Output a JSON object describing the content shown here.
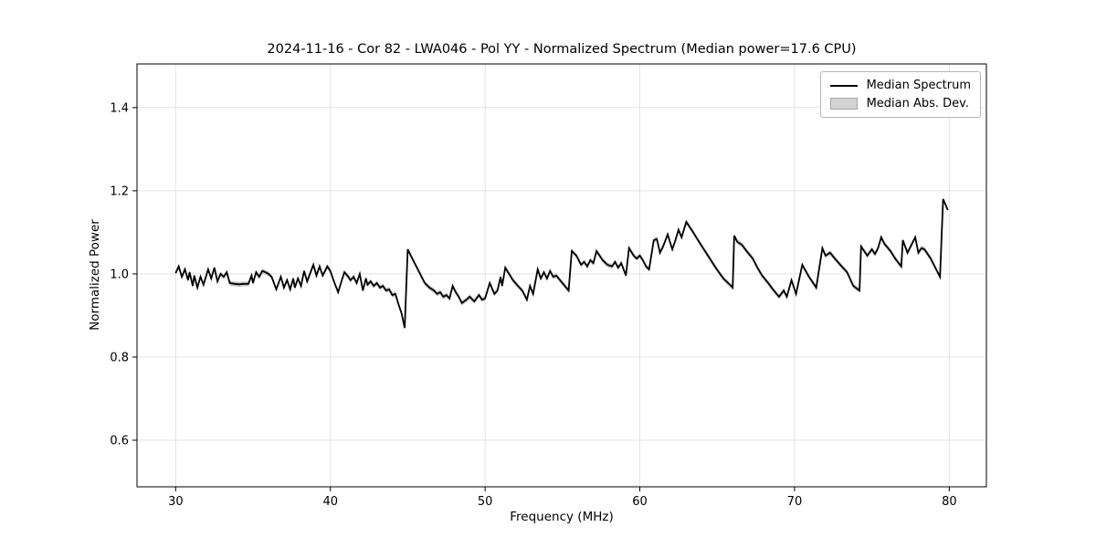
{
  "chart_data": {
    "type": "line",
    "title": "2024-11-16 - Cor 82 - LWA046 - Pol YY - Normalized Spectrum (Median power=17.6 CPU)",
    "xlabel": "Frequency (MHz)",
    "ylabel": "Normalized Power",
    "xlim": [
      27.5,
      82.4
    ],
    "ylim": [
      0.488,
      1.505
    ],
    "grid": true,
    "legend_position": "upper right",
    "xticks": {
      "values": [
        30,
        40,
        50,
        60,
        70,
        80
      ],
      "labels": [
        "30",
        "40",
        "50",
        "60",
        "70",
        "80"
      ]
    },
    "yticks": {
      "values": [
        0.6,
        0.8,
        1.0,
        1.2,
        1.4
      ],
      "labels": [
        "0.6",
        "0.8",
        "1.0",
        "1.2",
        "1.4"
      ]
    },
    "legend": {
      "entries": [
        {
          "label": "Median Spectrum",
          "type": "line",
          "color": "#000000"
        },
        {
          "label": "Median Abs. Dev.",
          "type": "patch",
          "color": "#d3d3d3",
          "edge": "#a6a6a6"
        }
      ]
    },
    "colors": {
      "grid": "#e4e4e4",
      "spine": "#000000",
      "background": "#ffffff",
      "band": "#c8c8c8"
    },
    "series": [
      {
        "name": "Median Spectrum",
        "type": "line",
        "color": "#000000",
        "x": [
          30.0,
          30.2,
          30.4,
          30.6,
          30.8,
          30.9,
          31.1,
          31.2,
          31.4,
          31.6,
          31.8,
          32.1,
          32.3,
          32.5,
          32.7,
          32.9,
          33.1,
          33.3,
          33.5,
          33.8,
          34.1,
          34.4,
          34.7,
          34.9,
          35.0,
          35.2,
          35.4,
          35.6,
          35.8,
          36.0,
          36.2,
          36.5,
          36.8,
          37.0,
          37.2,
          37.4,
          37.6,
          37.7,
          37.9,
          38.1,
          38.3,
          38.5,
          38.9,
          39.1,
          39.3,
          39.5,
          39.8,
          40.0,
          40.2,
          40.5,
          40.9,
          41.1,
          41.3,
          41.5,
          41.7,
          41.9,
          42.1,
          42.3,
          42.4,
          42.6,
          42.8,
          43.0,
          43.2,
          43.4,
          43.6,
          43.8,
          44.0,
          44.2,
          44.4,
          44.6,
          44.8,
          45.0,
          45.2,
          45.5,
          45.8,
          46.1,
          46.4,
          46.7,
          46.9,
          47.1,
          47.3,
          47.5,
          47.7,
          47.9,
          48.1,
          48.3,
          48.5,
          48.8,
          49.0,
          49.3,
          49.6,
          49.8,
          50.0,
          50.3,
          50.6,
          50.8,
          51.0,
          51.1,
          51.3,
          51.8,
          52.1,
          52.4,
          52.7,
          52.9,
          53.1,
          53.4,
          53.6,
          53.8,
          54.0,
          54.2,
          54.4,
          54.6,
          55.0,
          55.4,
          55.6,
          55.9,
          56.2,
          56.4,
          56.6,
          56.8,
          57.0,
          57.2,
          57.6,
          57.9,
          58.2,
          58.4,
          58.6,
          58.8,
          59.1,
          59.3,
          59.6,
          59.8,
          60.0,
          60.2,
          60.4,
          60.6,
          60.9,
          61.1,
          61.3,
          61.5,
          61.8,
          62.1,
          62.3,
          62.5,
          62.7,
          63.0,
          63.4,
          63.9,
          64.4,
          64.9,
          65.4,
          65.9,
          66.0,
          66.1,
          66.3,
          66.6,
          66.9,
          67.3,
          67.6,
          67.9,
          68.3,
          68.6,
          69.0,
          69.3,
          69.5,
          69.8,
          70.1,
          70.5,
          70.9,
          71.4,
          71.8,
          72.0,
          72.3,
          72.6,
          73.0,
          73.4,
          73.8,
          74.2,
          74.3,
          74.7,
          75.0,
          75.2,
          75.4,
          75.6,
          75.8,
          76.2,
          76.5,
          76.9,
          77.0,
          77.3,
          77.8,
          78.0,
          78.2,
          78.4,
          78.8,
          79.1,
          79.4,
          79.6,
          79.9
        ],
        "y": [
          1.002,
          1.018,
          0.993,
          1.011,
          0.985,
          1.004,
          0.971,
          0.996,
          0.967,
          0.993,
          0.974,
          1.011,
          0.989,
          1.015,
          0.982,
          1.0,
          0.993,
          1.004,
          0.978,
          0.976,
          0.975,
          0.976,
          0.976,
          0.996,
          0.978,
          1.004,
          0.993,
          1.007,
          1.004,
          1.0,
          0.993,
          0.963,
          0.993,
          0.967,
          0.985,
          0.963,
          0.989,
          0.967,
          0.989,
          0.971,
          1.007,
          0.982,
          1.022,
          0.996,
          1.018,
          0.996,
          1.018,
          1.007,
          0.985,
          0.956,
          1.004,
          0.996,
          0.985,
          0.993,
          0.978,
          1.0,
          0.96,
          0.989,
          0.974,
          0.982,
          0.971,
          0.978,
          0.967,
          0.971,
          0.96,
          0.963,
          0.949,
          0.952,
          0.927,
          0.905,
          0.87,
          1.059,
          1.044,
          1.022,
          1.0,
          0.978,
          0.967,
          0.96,
          0.952,
          0.956,
          0.945,
          0.949,
          0.941,
          0.971,
          0.956,
          0.945,
          0.93,
          0.938,
          0.945,
          0.934,
          0.949,
          0.938,
          0.941,
          0.978,
          0.952,
          0.96,
          0.993,
          0.971,
          1.015,
          0.985,
          0.972,
          0.96,
          0.938,
          0.971,
          0.952,
          1.011,
          0.989,
          1.004,
          0.989,
          1.007,
          0.993,
          0.996,
          0.978,
          0.96,
          1.055,
          1.044,
          1.022,
          1.029,
          1.018,
          1.033,
          1.026,
          1.055,
          1.033,
          1.022,
          1.018,
          1.029,
          1.015,
          1.026,
          0.996,
          1.062,
          1.044,
          1.037,
          1.044,
          1.033,
          1.018,
          1.011,
          1.081,
          1.084,
          1.051,
          1.066,
          1.095,
          1.059,
          1.081,
          1.106,
          1.088,
          1.125,
          1.103,
          1.073,
          1.044,
          1.015,
          0.989,
          0.971,
          0.967,
          1.092,
          1.077,
          1.07,
          1.055,
          1.037,
          1.015,
          0.996,
          0.978,
          0.963,
          0.945,
          0.96,
          0.945,
          0.985,
          0.952,
          1.022,
          0.995,
          0.967,
          1.062,
          1.044,
          1.051,
          1.037,
          1.02,
          1.004,
          0.971,
          0.96,
          1.066,
          1.044,
          1.059,
          1.048,
          1.062,
          1.088,
          1.073,
          1.055,
          1.037,
          1.018,
          1.081,
          1.051,
          1.088,
          1.051,
          1.062,
          1.059,
          1.037,
          1.015,
          0.993,
          1.18,
          1.154
        ]
      },
      {
        "name": "Median Abs. Dev.",
        "type": "band",
        "color": "#c8c8c8",
        "dev": 0.006
      }
    ]
  }
}
